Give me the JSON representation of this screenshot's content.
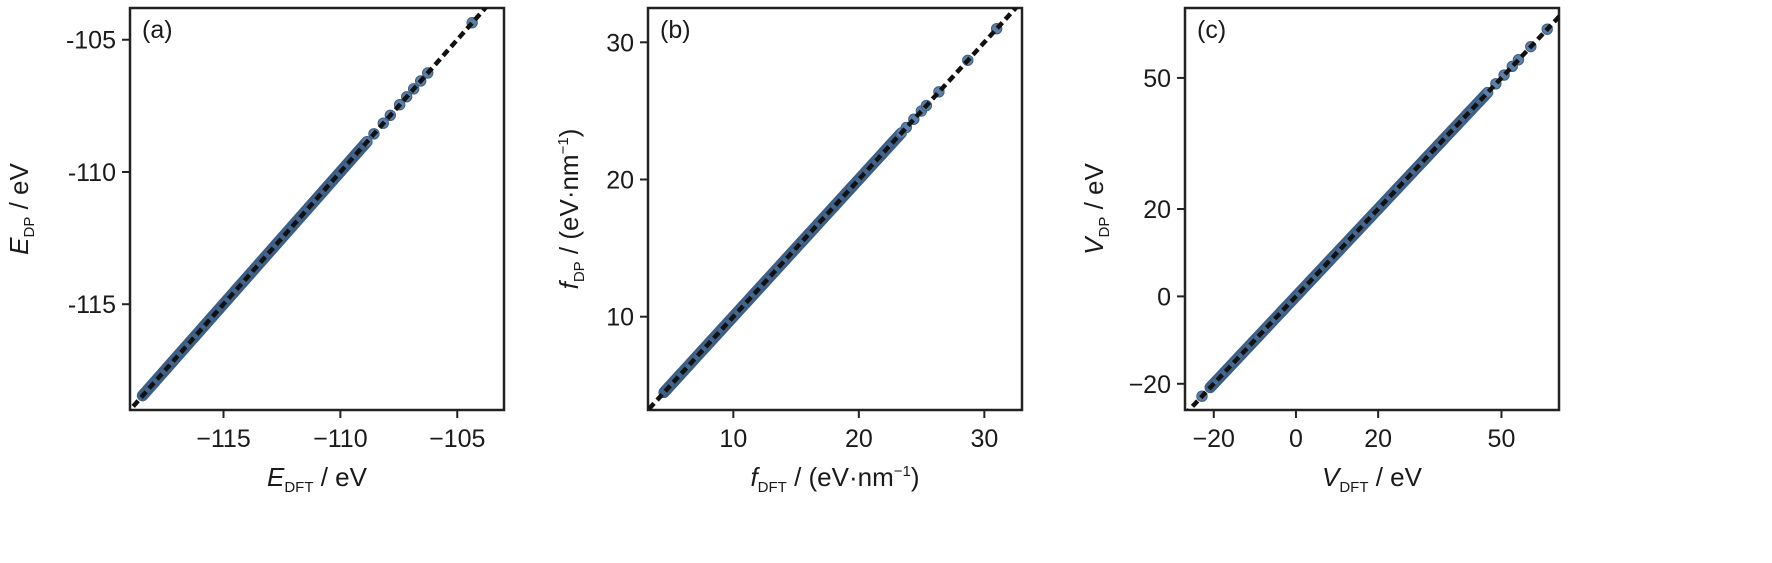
{
  "chart_data": [
    {
      "type": "scatter",
      "panel_label": "(a)",
      "xlabel": {
        "main": "E",
        "sub": "DFT",
        "unit": " / eV"
      },
      "ylabel": {
        "main": "E",
        "sub": "DP",
        "unit": " / eV"
      },
      "xlim": [
        -119,
        -103
      ],
      "ylim": [
        -119,
        -103.8
      ],
      "xticks": [
        {
          "v": -115,
          "label": "−115"
        },
        {
          "v": -110,
          "label": "−110"
        },
        {
          "v": -105,
          "label": "−105"
        }
      ],
      "yticks": [
        {
          "v": -115,
          "label": "-115"
        },
        {
          "v": -110,
          "label": "-110"
        },
        {
          "v": -105,
          "label": "-105"
        }
      ],
      "reference_line": "y = x (dotted)",
      "points": {
        "dense_range": [
          -118.4,
          -108.8
        ],
        "sparse": [
          -108.5,
          -108.1,
          -107.8,
          -107.4,
          -107.1,
          -106.8,
          -106.5,
          -106.2,
          -104.3
        ]
      }
    },
    {
      "type": "scatter",
      "panel_label": "(b)",
      "xlabel": {
        "main": "f",
        "sub": "DFT",
        "unit": " / (eV·nm",
        "sup": "−1",
        "close": ")"
      },
      "ylabel": {
        "main": "f",
        "sub": "DP",
        "unit": " / (eV·nm",
        "sup": "−1",
        "close": ")"
      },
      "xlim": [
        3.2,
        33
      ],
      "ylim": [
        3.2,
        32.5
      ],
      "xticks": [
        {
          "v": 10,
          "label": "10"
        },
        {
          "v": 20,
          "label": "20"
        },
        {
          "v": 30,
          "label": "30"
        }
      ],
      "yticks": [
        {
          "v": 10,
          "label": "10"
        },
        {
          "v": 20,
          "label": "20"
        },
        {
          "v": 30,
          "label": "30"
        }
      ],
      "reference_line": "y = x (dotted)",
      "points": {
        "dense_range": [
          4.6,
          23.5
        ],
        "sparse": [
          23.9,
          24.5,
          25.1,
          25.5,
          26.5,
          28.8,
          31.1
        ]
      }
    },
    {
      "type": "scatter",
      "panel_label": "(c)",
      "xlabel": {
        "main": "V",
        "sub": "DFT",
        "unit": " / eV"
      },
      "ylabel": {
        "main": "V",
        "sub": "DP",
        "unit": " / eV"
      },
      "xlim": [
        -27,
        64
      ],
      "ylim": [
        -26,
        66
      ],
      "xticks": [
        {
          "v": -20,
          "label": "−20"
        },
        {
          "v": 0,
          "label": "0"
        },
        {
          "v": 20,
          "label": "20"
        },
        {
          "v": 50,
          "label": "50"
        }
      ],
      "yticks": [
        {
          "v": -20,
          "label": "−20"
        },
        {
          "v": 0,
          "label": "0"
        },
        {
          "v": 20,
          "label": "20"
        },
        {
          "v": 50,
          "label": "50"
        }
      ],
      "reference_line": "y = x (dotted)",
      "points": {
        "dense_range": [
          -20.5,
          47
        ],
        "sparse": [
          -22.5,
          49,
          51,
          53,
          54.5,
          57.5,
          61.5
        ]
      }
    }
  ],
  "colors": {
    "points": "#5d7fa6",
    "points_edge": "#3d5f86",
    "reference_line": "#111111",
    "axes": "#222222"
  }
}
